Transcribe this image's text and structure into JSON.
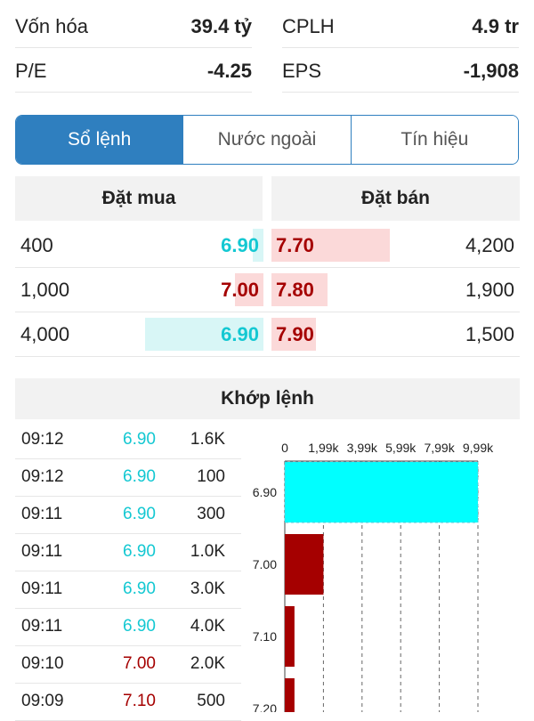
{
  "stats": [
    {
      "label": "Vốn hóa",
      "value": "39.4 tỷ"
    },
    {
      "label": "CPLH",
      "value": "4.9 tr"
    },
    {
      "label": "P/E",
      "value": "-4.25"
    },
    {
      "label": "EPS",
      "value": "-1,908"
    }
  ],
  "tabs": [
    {
      "label": "Sổ lệnh",
      "active": true
    },
    {
      "label": "Nước ngoài",
      "active": false
    },
    {
      "label": "Tín hiệu",
      "active": false
    }
  ],
  "order_book": {
    "buy_header": "Đặt mua",
    "sell_header": "Đặt bán",
    "rows": [
      {
        "buy_qty": "400",
        "buy_price": "6.90",
        "buy_color": "#14c8d2",
        "sell_price": "7.70",
        "sell_qty": "4,200",
        "buy_fill": 0.09,
        "sell_fill": 0.95
      },
      {
        "buy_qty": "1,000",
        "buy_price": "7.00",
        "buy_color": "#a50000",
        "sell_price": "7.80",
        "sell_qty": "1,900",
        "buy_fill": 0.24,
        "sell_fill": 0.45
      },
      {
        "buy_qty": "4,000",
        "buy_price": "6.90",
        "buy_color": "#14c8d2",
        "sell_price": "7.90",
        "sell_qty": "1,500",
        "buy_fill": 1.0,
        "sell_fill": 0.36
      }
    ]
  },
  "matched": {
    "header": "Khớp lệnh",
    "rows": [
      {
        "time": "09:12",
        "price": "6.90",
        "color": "#14c8d2",
        "vol": "1.6K"
      },
      {
        "time": "09:12",
        "price": "6.90",
        "color": "#14c8d2",
        "vol": "100"
      },
      {
        "time": "09:11",
        "price": "6.90",
        "color": "#14c8d2",
        "vol": "300"
      },
      {
        "time": "09:11",
        "price": "6.90",
        "color": "#14c8d2",
        "vol": "1.0K"
      },
      {
        "time": "09:11",
        "price": "6.90",
        "color": "#14c8d2",
        "vol": "3.0K"
      },
      {
        "time": "09:11",
        "price": "6.90",
        "color": "#14c8d2",
        "vol": "4.0K"
      },
      {
        "time": "09:10",
        "price": "7.00",
        "color": "#a50000",
        "vol": "2.0K"
      },
      {
        "time": "09:09",
        "price": "7.10",
        "color": "#a50000",
        "vol": "500"
      }
    ]
  },
  "chart_data": {
    "type": "bar",
    "orientation": "horizontal",
    "categories": [
      "6.90",
      "7.00",
      "7.10",
      "7.20"
    ],
    "values": [
      9990,
      2000,
      500,
      500
    ],
    "colors": [
      "#00ffff",
      "#a50000",
      "#a50000",
      "#a50000"
    ],
    "xticks": [
      "0",
      "1,99k",
      "3,99k",
      "5,99k",
      "7,99k",
      "9,99k"
    ],
    "xlim": [
      0,
      9990
    ]
  }
}
